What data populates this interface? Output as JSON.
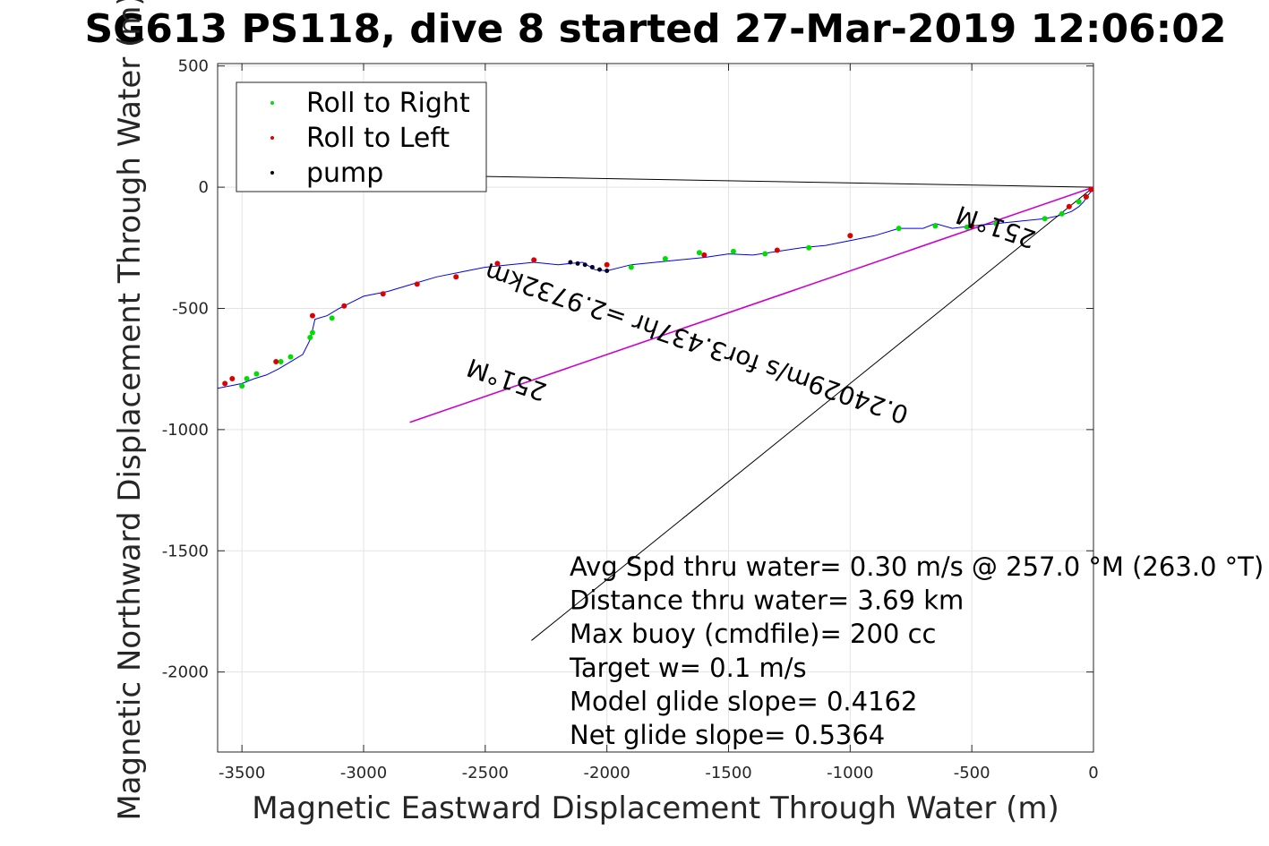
{
  "chart_data": {
    "type": "line",
    "title": "SG613 PS118, dive 8 started 27-Mar-2019 12:06:02",
    "xlabel": "Magnetic Eastward Displacement Through Water (m)",
    "ylabel": "Magnetic Northward Displacement Through Water (m)",
    "xlim": [
      -3600,
      0
    ],
    "ylim": [
      -2330,
      510
    ],
    "xticks": [
      "-3500",
      "-3000",
      "-2500",
      "-2000",
      "-1500",
      "-1000",
      "-500",
      "0"
    ],
    "xtick_values": [
      -3500,
      -3000,
      -2500,
      -2000,
      -1500,
      -1000,
      -500,
      0
    ],
    "yticks": [
      "500",
      "0",
      "-500",
      "-1000",
      "-1500",
      "-2000"
    ],
    "ytick_values": [
      500,
      0,
      -500,
      -1000,
      -1500,
      -2000
    ],
    "grid": true,
    "legend_position": "top-left",
    "legend": [
      {
        "label": "Roll to Right",
        "color": "#00dd00"
      },
      {
        "label": "Roll to Left",
        "color": "#dd0000"
      },
      {
        "label": "pump",
        "color": "#000000"
      }
    ],
    "colors": {
      "track": "#0000ee",
      "heading_line": "#cc00cc",
      "roll_right": "#00dd00",
      "roll_left": "#dd0000",
      "pump": "#000033",
      "current_line": "#000000"
    },
    "track": {
      "x": [
        0,
        -20,
        -40,
        -60,
        -90,
        -130,
        -200,
        -300,
        -400,
        -500,
        -580,
        -650,
        -700,
        -800,
        -900,
        -1000,
        -1100,
        -1200,
        -1300,
        -1400,
        -1500,
        -1600,
        -1700,
        -1800,
        -1900,
        -2000,
        -2050,
        -2100,
        -2200,
        -2300,
        -2400,
        -2500,
        -2600,
        -2700,
        -2800,
        -2900,
        -3000,
        -3050,
        -3100,
        -3150,
        -3200,
        -3210,
        -3220,
        -3250,
        -3300,
        -3350,
        -3400,
        -3450,
        -3500,
        -3550,
        -3600
      ],
      "y": [
        -5,
        -30,
        -60,
        -80,
        -100,
        -115,
        -130,
        -140,
        -150,
        -160,
        -170,
        -150,
        -170,
        -170,
        -200,
        -220,
        -240,
        -250,
        -265,
        -280,
        -275,
        -290,
        -300,
        -310,
        -320,
        -345,
        -340,
        -310,
        -320,
        -310,
        -320,
        -330,
        -350,
        -370,
        -400,
        -430,
        -450,
        -475,
        -500,
        -530,
        -545,
        -590,
        -630,
        -690,
        -720,
        -750,
        -775,
        -790,
        -810,
        -820,
        -830
      ]
    },
    "roll_right_points": {
      "x": [
        -30,
        -60,
        -130,
        -200,
        -400,
        -520,
        -650,
        -800,
        -1000,
        -1170,
        -1350,
        -1480,
        -1620,
        -1760,
        -1900,
        -3130,
        -3210,
        -3220,
        -3300,
        -3340,
        -3440,
        -3480,
        -3500
      ],
      "y": [
        -40,
        -60,
        -110,
        -130,
        -150,
        -165,
        -160,
        -170,
        -200,
        -250,
        -275,
        -265,
        -270,
        -295,
        -330,
        -540,
        -600,
        -620,
        -700,
        -720,
        -770,
        -790,
        -820
      ]
    },
    "roll_left_points": {
      "x": [
        -10,
        -30,
        -100,
        -500,
        -1000,
        -1300,
        -1600,
        -2000,
        -2300,
        -2450,
        -2620,
        -2780,
        -2920,
        -3080,
        -3210,
        -3360,
        -3540,
        -3570
      ],
      "y": [
        -10,
        -40,
        -80,
        -160,
        -200,
        -260,
        -280,
        -320,
        -300,
        -315,
        -370,
        -400,
        -440,
        -490,
        -530,
        -720,
        -790,
        -810
      ]
    },
    "pump_points": {
      "x": [
        -2150,
        -2120,
        -2090,
        -2060,
        -2030,
        -2000
      ],
      "y": [
        -310,
        -315,
        -320,
        -330,
        -340,
        -345
      ]
    },
    "heading_line": {
      "x": [
        0,
        -2810
      ],
      "y": [
        0,
        -970
      ]
    },
    "current_line_short": {
      "x": [
        0,
        -2550
      ],
      "y": [
        0,
        45
      ]
    },
    "current_line_long": {
      "x": [
        0,
        -2310
      ],
      "y": [
        0,
        -1870
      ]
    },
    "rotated_labels": [
      {
        "text": "251°M",
        "x": -390,
        "y": -130,
        "angle": 199
      },
      {
        "text": "0.24029m/s for3.437hr =2.9732km",
        "x": -1620,
        "y": -610,
        "angle": 199
      },
      {
        "text": "251°M",
        "x": -2400,
        "y": -760,
        "angle": 199
      }
    ],
    "annotations": [
      "Avg Spd thru water=  0.30 m/s @ 257.0 °M (263.0 °T)",
      "Distance thru water=  3.69 km",
      "Max buoy (cmdfile)= 200 cc",
      "Target w= 0.1 m/s",
      "Model glide slope= 0.4162",
      "Net glide slope= 0.5364"
    ]
  }
}
